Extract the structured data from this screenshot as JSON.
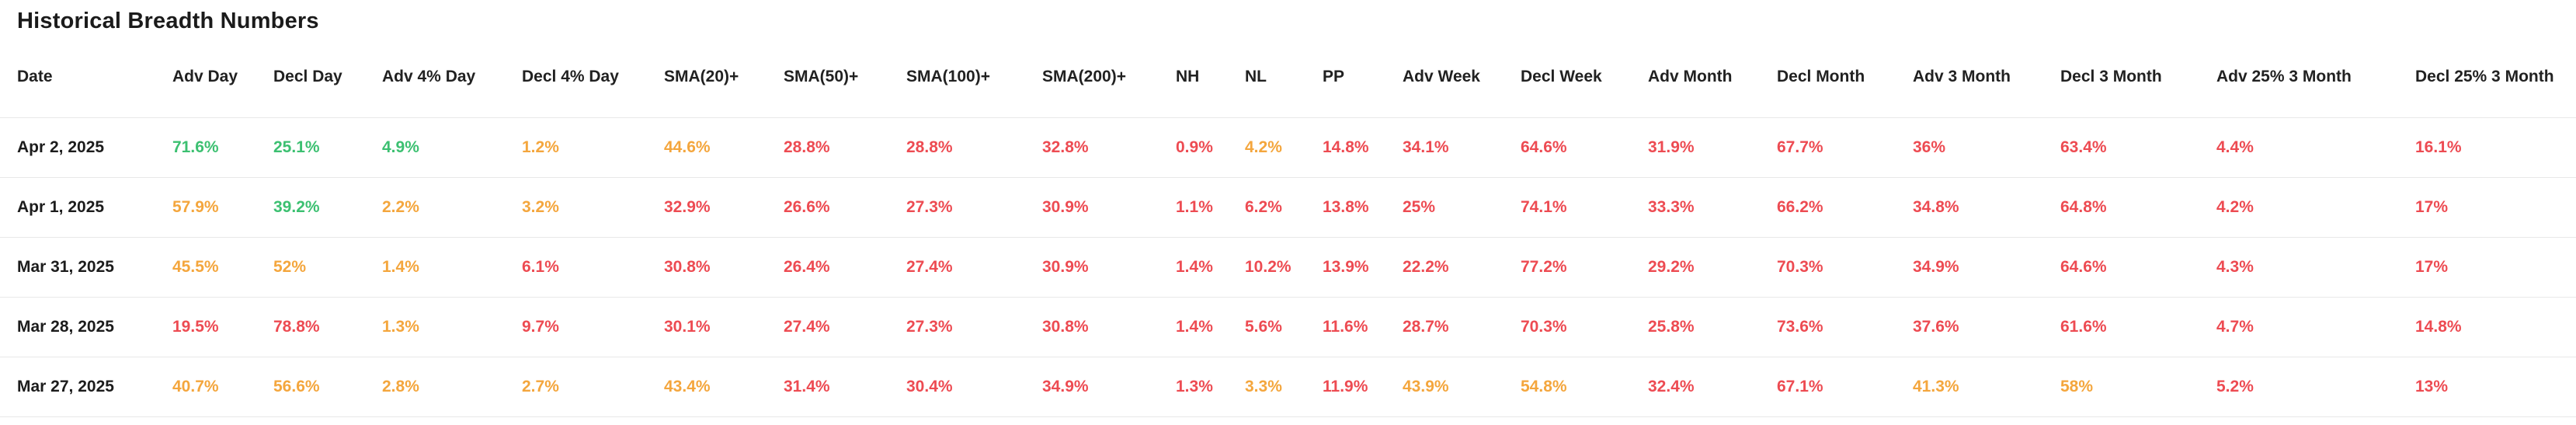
{
  "page": {
    "title": "Historical Breadth Numbers"
  },
  "colors": {
    "green": "#3cc071",
    "yellow": "#f4a63d",
    "red": "#ed4b52",
    "header_text": "#212121",
    "date_text": "#1c1c1c",
    "row_divider": "#e8e8e8"
  },
  "table": {
    "columns": [
      "Date",
      "Adv Day",
      "Decl Day",
      "Adv 4% Day",
      "Decl 4% Day",
      "SMA(20)+",
      "SMA(50)+",
      "SMA(100)+",
      "SMA(200)+",
      "NH",
      "NL",
      "PP",
      "Adv Week",
      "Decl Week",
      "Adv Month",
      "Decl Month",
      "Adv 3 Month",
      "Decl 3 Month",
      "Adv 25% 3 Month",
      "Decl 25% 3 Month"
    ],
    "rows": [
      {
        "date": "Apr 2, 2025",
        "cells": [
          {
            "v": "71.6%",
            "c": "green"
          },
          {
            "v": "25.1%",
            "c": "green"
          },
          {
            "v": "4.9%",
            "c": "green"
          },
          {
            "v": "1.2%",
            "c": "yellow"
          },
          {
            "v": "44.6%",
            "c": "yellow"
          },
          {
            "v": "28.8%",
            "c": "red"
          },
          {
            "v": "28.8%",
            "c": "red"
          },
          {
            "v": "32.8%",
            "c": "red"
          },
          {
            "v": "0.9%",
            "c": "red"
          },
          {
            "v": "4.2%",
            "c": "yellow"
          },
          {
            "v": "14.8%",
            "c": "red"
          },
          {
            "v": "34.1%",
            "c": "red"
          },
          {
            "v": "64.6%",
            "c": "red"
          },
          {
            "v": "31.9%",
            "c": "red"
          },
          {
            "v": "67.7%",
            "c": "red"
          },
          {
            "v": "36%",
            "c": "red"
          },
          {
            "v": "63.4%",
            "c": "red"
          },
          {
            "v": "4.4%",
            "c": "red"
          },
          {
            "v": "16.1%",
            "c": "red"
          }
        ]
      },
      {
        "date": "Apr 1, 2025",
        "cells": [
          {
            "v": "57.9%",
            "c": "yellow"
          },
          {
            "v": "39.2%",
            "c": "green"
          },
          {
            "v": "2.2%",
            "c": "yellow"
          },
          {
            "v": "3.2%",
            "c": "yellow"
          },
          {
            "v": "32.9%",
            "c": "red"
          },
          {
            "v": "26.6%",
            "c": "red"
          },
          {
            "v": "27.3%",
            "c": "red"
          },
          {
            "v": "30.9%",
            "c": "red"
          },
          {
            "v": "1.1%",
            "c": "red"
          },
          {
            "v": "6.2%",
            "c": "red"
          },
          {
            "v": "13.8%",
            "c": "red"
          },
          {
            "v": "25%",
            "c": "red"
          },
          {
            "v": "74.1%",
            "c": "red"
          },
          {
            "v": "33.3%",
            "c": "red"
          },
          {
            "v": "66.2%",
            "c": "red"
          },
          {
            "v": "34.8%",
            "c": "red"
          },
          {
            "v": "64.8%",
            "c": "red"
          },
          {
            "v": "4.2%",
            "c": "red"
          },
          {
            "v": "17%",
            "c": "red"
          }
        ]
      },
      {
        "date": "Mar 31, 2025",
        "cells": [
          {
            "v": "45.5%",
            "c": "yellow"
          },
          {
            "v": "52%",
            "c": "yellow"
          },
          {
            "v": "1.4%",
            "c": "yellow"
          },
          {
            "v": "6.1%",
            "c": "red"
          },
          {
            "v": "30.8%",
            "c": "red"
          },
          {
            "v": "26.4%",
            "c": "red"
          },
          {
            "v": "27.4%",
            "c": "red"
          },
          {
            "v": "30.9%",
            "c": "red"
          },
          {
            "v": "1.4%",
            "c": "red"
          },
          {
            "v": "10.2%",
            "c": "red"
          },
          {
            "v": "13.9%",
            "c": "red"
          },
          {
            "v": "22.2%",
            "c": "red"
          },
          {
            "v": "77.2%",
            "c": "red"
          },
          {
            "v": "29.2%",
            "c": "red"
          },
          {
            "v": "70.3%",
            "c": "red"
          },
          {
            "v": "34.9%",
            "c": "red"
          },
          {
            "v": "64.6%",
            "c": "red"
          },
          {
            "v": "4.3%",
            "c": "red"
          },
          {
            "v": "17%",
            "c": "red"
          }
        ]
      },
      {
        "date": "Mar 28, 2025",
        "cells": [
          {
            "v": "19.5%",
            "c": "red"
          },
          {
            "v": "78.8%",
            "c": "red"
          },
          {
            "v": "1.3%",
            "c": "yellow"
          },
          {
            "v": "9.7%",
            "c": "red"
          },
          {
            "v": "30.1%",
            "c": "red"
          },
          {
            "v": "27.4%",
            "c": "red"
          },
          {
            "v": "27.3%",
            "c": "red"
          },
          {
            "v": "30.8%",
            "c": "red"
          },
          {
            "v": "1.4%",
            "c": "red"
          },
          {
            "v": "5.6%",
            "c": "red"
          },
          {
            "v": "11.6%",
            "c": "red"
          },
          {
            "v": "28.7%",
            "c": "red"
          },
          {
            "v": "70.3%",
            "c": "red"
          },
          {
            "v": "25.8%",
            "c": "red"
          },
          {
            "v": "73.6%",
            "c": "red"
          },
          {
            "v": "37.6%",
            "c": "red"
          },
          {
            "v": "61.6%",
            "c": "red"
          },
          {
            "v": "4.7%",
            "c": "red"
          },
          {
            "v": "14.8%",
            "c": "red"
          }
        ]
      },
      {
        "date": "Mar 27, 2025",
        "cells": [
          {
            "v": "40.7%",
            "c": "yellow"
          },
          {
            "v": "56.6%",
            "c": "yellow"
          },
          {
            "v": "2.8%",
            "c": "yellow"
          },
          {
            "v": "2.7%",
            "c": "yellow"
          },
          {
            "v": "43.4%",
            "c": "yellow"
          },
          {
            "v": "31.4%",
            "c": "red"
          },
          {
            "v": "30.4%",
            "c": "red"
          },
          {
            "v": "34.9%",
            "c": "red"
          },
          {
            "v": "1.3%",
            "c": "red"
          },
          {
            "v": "3.3%",
            "c": "yellow"
          },
          {
            "v": "11.9%",
            "c": "red"
          },
          {
            "v": "43.9%",
            "c": "yellow"
          },
          {
            "v": "54.8%",
            "c": "yellow"
          },
          {
            "v": "32.4%",
            "c": "red"
          },
          {
            "v": "67.1%",
            "c": "red"
          },
          {
            "v": "41.3%",
            "c": "yellow"
          },
          {
            "v": "58%",
            "c": "yellow"
          },
          {
            "v": "5.2%",
            "c": "red"
          },
          {
            "v": "13%",
            "c": "red"
          }
        ]
      }
    ]
  }
}
